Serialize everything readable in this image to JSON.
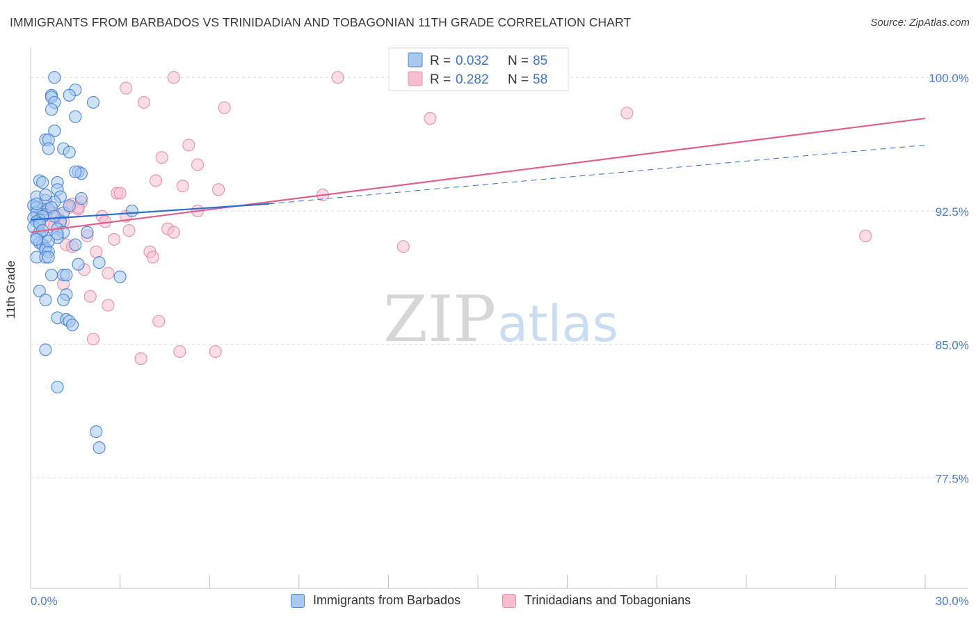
{
  "title": "IMMIGRANTS FROM BARBADOS VS TRINIDADIAN AND TOBAGONIAN 11TH GRADE CORRELATION CHART",
  "source": "Source: ZipAtlas.com",
  "watermark": {
    "zip": "ZIP",
    "atlas": "atlas"
  },
  "colors": {
    "blue_fill": "#a8c8f0",
    "blue_stroke": "#4a86d4",
    "blue_line": "#2b6fd0",
    "pink_fill": "#f6bfd0",
    "pink_stroke": "#e58fab",
    "pink_line": "#e0608c",
    "axis_label": "#4a7fd0",
    "grid": "#dcdcdc"
  },
  "legend": {
    "r_label": "R =",
    "n_label": "N =",
    "rows": [
      {
        "series": "blue",
        "r": "0.032",
        "n": "85"
      },
      {
        "series": "pink",
        "r": "0.282",
        "n": "58"
      }
    ]
  },
  "bottom_legend": [
    {
      "series": "blue",
      "label": "Immigrants from Barbados"
    },
    {
      "series": "pink",
      "label": "Trinidadians and Tobagonians"
    }
  ],
  "chart_data": {
    "type": "scatter",
    "ylabel": "11th Grade",
    "xlim": [
      0,
      30
    ],
    "ylim": [
      71.3,
      101.3
    ],
    "x_tick_labels": [
      {
        "value": 0,
        "label": "0.0%"
      },
      {
        "value": 30,
        "label": "30.0%"
      }
    ],
    "y_tick_labels": [
      {
        "value": 100,
        "label": "100.0%"
      },
      {
        "value": 92.5,
        "label": "92.5%"
      },
      {
        "value": 85,
        "label": "85.0%"
      },
      {
        "value": 77.5,
        "label": "77.5%"
      }
    ],
    "series": [
      {
        "name": "Immigrants from Barbados",
        "color": "blue",
        "R": 0.032,
        "N": 85,
        "trend": {
          "x": [
            0,
            8
          ],
          "y": [
            92.0,
            92.9
          ],
          "extended_x": [
            8,
            30
          ],
          "extended_y": [
            92.9,
            96.2
          ]
        },
        "points": [
          [
            0.8,
            100.0
          ],
          [
            1.5,
            99.3
          ],
          [
            0.7,
            99.0
          ],
          [
            0.7,
            98.9
          ],
          [
            1.3,
            99.0
          ],
          [
            0.8,
            98.6
          ],
          [
            0.7,
            98.2
          ],
          [
            2.1,
            98.6
          ],
          [
            1.5,
            97.8
          ],
          [
            0.8,
            97.0
          ],
          [
            0.5,
            96.5
          ],
          [
            0.6,
            96.5
          ],
          [
            1.1,
            96.0
          ],
          [
            0.6,
            96.0
          ],
          [
            1.3,
            95.8
          ],
          [
            1.6,
            94.7
          ],
          [
            1.7,
            94.6
          ],
          [
            1.5,
            94.7
          ],
          [
            0.9,
            94.1
          ],
          [
            0.3,
            94.2
          ],
          [
            0.4,
            94.1
          ],
          [
            0.9,
            93.7
          ],
          [
            0.2,
            93.3
          ],
          [
            1.7,
            93.2
          ],
          [
            1.0,
            93.3
          ],
          [
            0.8,
            93.0
          ],
          [
            0.5,
            93.1
          ],
          [
            0.1,
            92.8
          ],
          [
            0.2,
            92.7
          ],
          [
            0.4,
            92.6
          ],
          [
            0.6,
            92.6
          ],
          [
            0.2,
            92.4
          ],
          [
            0.5,
            92.3
          ],
          [
            1.1,
            92.4
          ],
          [
            0.4,
            92.2
          ],
          [
            0.1,
            92.1
          ],
          [
            0.3,
            92.0
          ],
          [
            0.2,
            91.9
          ],
          [
            1.0,
            91.9
          ],
          [
            3.4,
            92.5
          ],
          [
            0.9,
            91.5
          ],
          [
            0.1,
            91.6
          ],
          [
            0.3,
            91.3
          ],
          [
            1.1,
            91.3
          ],
          [
            0.5,
            91.0
          ],
          [
            0.2,
            91.0
          ],
          [
            0.9,
            91.0
          ],
          [
            0.3,
            90.7
          ],
          [
            0.4,
            90.6
          ],
          [
            0.5,
            90.4
          ],
          [
            1.5,
            90.6
          ],
          [
            1.9,
            91.3
          ],
          [
            0.5,
            90.3
          ],
          [
            0.6,
            90.2
          ],
          [
            0.2,
            89.9
          ],
          [
            0.5,
            89.9
          ],
          [
            0.6,
            89.9
          ],
          [
            1.6,
            89.5
          ],
          [
            2.3,
            89.6
          ],
          [
            0.7,
            88.9
          ],
          [
            1.1,
            88.9
          ],
          [
            1.2,
            88.9
          ],
          [
            3.0,
            88.8
          ],
          [
            0.3,
            88.0
          ],
          [
            1.2,
            87.8
          ],
          [
            1.1,
            87.5
          ],
          [
            0.5,
            87.5
          ],
          [
            0.9,
            86.5
          ],
          [
            1.2,
            86.4
          ],
          [
            1.3,
            86.3
          ],
          [
            1.4,
            86.1
          ],
          [
            0.5,
            84.7
          ],
          [
            0.9,
            82.6
          ],
          [
            2.2,
            80.1
          ],
          [
            2.3,
            79.2
          ],
          [
            0.2,
            92.9
          ],
          [
            0.7,
            92.7
          ],
          [
            1.3,
            92.8
          ],
          [
            0.3,
            91.8
          ],
          [
            0.8,
            92.2
          ],
          [
            0.4,
            91.4
          ],
          [
            0.6,
            90.8
          ],
          [
            0.2,
            90.9
          ],
          [
            0.9,
            91.2
          ],
          [
            0.5,
            93.4
          ]
        ]
      },
      {
        "name": "Trinidadians and Tobagonians",
        "color": "pink",
        "R": 0.282,
        "N": 58,
        "trend": {
          "x": [
            0,
            30
          ],
          "y": [
            91.3,
            97.7
          ]
        },
        "points": [
          [
            4.8,
            100.0
          ],
          [
            10.3,
            100.0
          ],
          [
            3.2,
            99.4
          ],
          [
            3.8,
            98.6
          ],
          [
            6.5,
            98.3
          ],
          [
            13.4,
            97.7
          ],
          [
            20.0,
            98.0
          ],
          [
            5.3,
            96.2
          ],
          [
            4.4,
            95.5
          ],
          [
            5.6,
            95.1
          ],
          [
            4.2,
            94.2
          ],
          [
            5.1,
            93.9
          ],
          [
            6.3,
            93.7
          ],
          [
            2.9,
            93.5
          ],
          [
            3.0,
            93.5
          ],
          [
            9.8,
            93.4
          ],
          [
            1.7,
            93.0
          ],
          [
            1.4,
            92.9
          ],
          [
            1.3,
            92.7
          ],
          [
            1.6,
            92.6
          ],
          [
            2.4,
            92.2
          ],
          [
            3.2,
            92.2
          ],
          [
            5.6,
            92.5
          ],
          [
            2.5,
            91.9
          ],
          [
            0.5,
            92.8
          ],
          [
            0.7,
            92.4
          ],
          [
            0.9,
            92.3
          ],
          [
            0.4,
            92.1
          ],
          [
            0.2,
            92.4
          ],
          [
            1.1,
            91.9
          ],
          [
            4.6,
            91.5
          ],
          [
            4.8,
            91.3
          ],
          [
            3.3,
            91.4
          ],
          [
            1.9,
            91.1
          ],
          [
            2.8,
            90.9
          ],
          [
            1.2,
            90.6
          ],
          [
            1.4,
            90.5
          ],
          [
            2.2,
            90.2
          ],
          [
            4.0,
            90.2
          ],
          [
            4.1,
            89.9
          ],
          [
            12.5,
            90.5
          ],
          [
            28.0,
            91.1
          ],
          [
            1.8,
            89.2
          ],
          [
            2.6,
            89.0
          ],
          [
            1.1,
            88.4
          ],
          [
            2.0,
            87.7
          ],
          [
            2.6,
            87.2
          ],
          [
            4.3,
            86.3
          ],
          [
            2.1,
            85.3
          ],
          [
            3.7,
            84.2
          ],
          [
            5.0,
            84.6
          ],
          [
            6.2,
            84.6
          ],
          [
            0.3,
            92.6
          ],
          [
            0.6,
            91.6
          ],
          [
            1.0,
            92.0
          ],
          [
            0.4,
            92.3
          ],
          [
            0.8,
            91.7
          ],
          [
            1.6,
            92.7
          ]
        ]
      }
    ]
  }
}
